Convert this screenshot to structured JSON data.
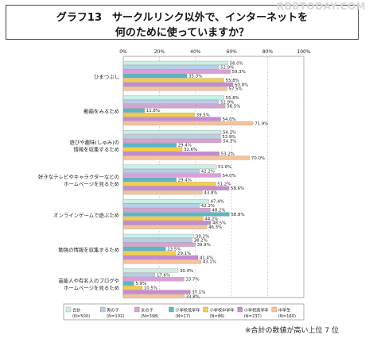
{
  "watermark": "RBBTODAY.COM",
  "chart_data": {
    "type": "bar",
    "orientation": "horizontal",
    "title": "グラフ13　サークルリンク以外で、インターネットを",
    "subtitle": "何のために使っていますか？",
    "xlim": [
      0,
      100
    ],
    "x_ticks": [
      "0%",
      "20%",
      "40%",
      "60%",
      "80%",
      "100%"
    ],
    "categories": [
      "ひまつぶし",
      "動画をみるため",
      "遊びや趣味(しゅみ)の情報を収集するため",
      "好きなテレビやキャラクターなどのホームページを見るため",
      "オンラインゲームで遊ぶため",
      "勉強の情報を収集するため",
      "芸能人や有名人のブログやホームページを見るため"
    ],
    "category_lines": [
      [
        "ひまつぶし"
      ],
      [
        "動画をみるため"
      ],
      [
        "遊びや趣味(しゅみ)の",
        "情報を収集するため"
      ],
      [
        "好きなテレビやキャラクターなどの",
        "ホームページを見るため"
      ],
      [
        "オンラインゲームで遊ぶため"
      ],
      [
        "勉強の情報を収集するため"
      ],
      [
        "芸能人や有名人のブログや",
        "ホームページを見るため"
      ]
    ],
    "series": [
      {
        "name": "合計",
        "n": "(N=500)",
        "color": "#c8f0e4",
        "values": [
          58.0,
          55.8,
          54.2,
          51.6,
          47.4,
          39.2,
          30.4
        ]
      },
      {
        "name": "男の子",
        "n": "(N=102)",
        "color": "#b8cdea",
        "values": [
          52.9,
          52.9,
          53.9,
          42.2,
          42.2,
          38.2,
          17.6
        ]
      },
      {
        "name": "女の子",
        "n": "(N=398)",
        "color": "#d9a0d6",
        "values": [
          59.3,
          56.5,
          54.3,
          54.0,
          48.2,
          39.9,
          33.7
        ]
      },
      {
        "name": "小学校低学年",
        "n": "(N=17)",
        "color": "#58b6c8",
        "values": [
          35.3,
          11.8,
          29.4,
          29.4,
          58.8,
          23.5,
          5.9
        ]
      },
      {
        "name": "小学校中学年",
        "n": "(N=86)",
        "color": "#f4cf46",
        "values": [
          55.8,
          39.5,
          32.6,
          51.2,
          44.2,
          29.1,
          10.5
        ]
      },
      {
        "name": "小学校高学年",
        "n": "(N=237)",
        "color": "#c889d2",
        "values": [
          60.8,
          54.0,
          53.2,
          58.6,
          48.5,
          41.4,
          37.1
        ]
      },
      {
        "name": "中学生",
        "n": "(N=160)",
        "color": "#f6c39a",
        "values": [
          57.5,
          71.9,
          70.0,
          43.8,
          46.3,
          43.1,
          33.8
        ]
      }
    ],
    "value_labels": [
      [
        "58.0%",
        "52.9%",
        "59.3%",
        "35.3%",
        "55.8%",
        "60.8%",
        "57.5%"
      ],
      [
        "55.8%",
        "52.9%",
        "56.5%",
        "11.8%",
        "39.5%",
        "54.0%",
        "71.9%"
      ],
      [
        "54.2%",
        "53.9%",
        "54.3%",
        "29.4%",
        "32.6%",
        "53.2%",
        "70.0%"
      ],
      [
        "51.6%",
        "42.2%",
        "54.0%",
        "29.4%",
        "51.2%",
        "58.6%",
        "43.8%"
      ],
      [
        "47.4%",
        "42.2%",
        "48.2%",
        "58.8%",
        "44.2%",
        "48.5%",
        "46.3%"
      ],
      [
        "39.2%",
        "38.2%",
        "39.9%",
        "23.5%",
        "29.1%",
        "41.4%",
        "43.1%"
      ],
      [
        "30.4%",
        "17.6%",
        "33.7%",
        "5.9%",
        "10.5%",
        "37.1%",
        "33.8%"
      ]
    ],
    "grid": true,
    "legend_position": "bottom",
    "footnote": "※合計の数値が高い上位 7 位"
  }
}
